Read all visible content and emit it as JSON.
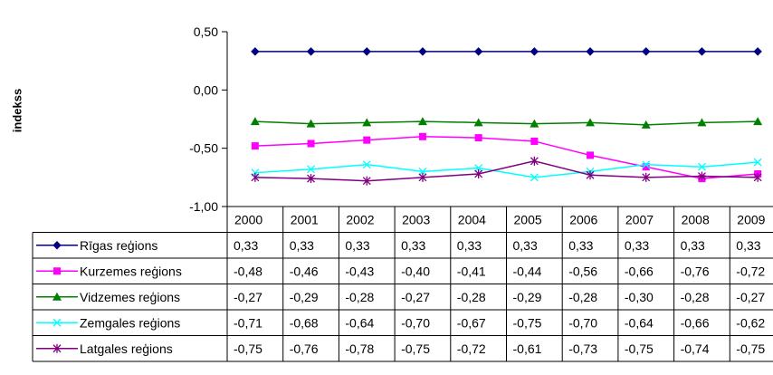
{
  "chart_data": {
    "type": "line",
    "title": "",
    "xlabel": "",
    "ylabel": "indekss",
    "ylim": [
      -1.0,
      0.5
    ],
    "yticks": [
      "0,50",
      "0,00",
      "-0,50",
      "-1,00"
    ],
    "categories": [
      "2000",
      "2001",
      "2002",
      "2003",
      "2004",
      "2005",
      "2006",
      "2007",
      "2008",
      "2009"
    ],
    "grid": false,
    "legend": "data-table",
    "series": [
      {
        "name": "Rīgas reģions",
        "color": "#000080",
        "marker": "diamond",
        "values": [
          0.33,
          0.33,
          0.33,
          0.33,
          0.33,
          0.33,
          0.33,
          0.33,
          0.33,
          0.33
        ],
        "labels": [
          "0,33",
          "0,33",
          "0,33",
          "0,33",
          "0,33",
          "0,33",
          "0,33",
          "0,33",
          "0,33",
          "0,33"
        ]
      },
      {
        "name": "Kurzemes reģions",
        "color": "#ff00ff",
        "marker": "square",
        "values": [
          -0.48,
          -0.46,
          -0.43,
          -0.4,
          -0.41,
          -0.44,
          -0.56,
          -0.66,
          -0.76,
          -0.72
        ],
        "labels": [
          "-0,48",
          "-0,46",
          "-0,43",
          "-0,40",
          "-0,41",
          "-0,44",
          "-0,56",
          "-0,66",
          "-0,76",
          "-0,72"
        ]
      },
      {
        "name": "Vidzemes reģions",
        "color": "#008000",
        "marker": "triangle",
        "values": [
          -0.27,
          -0.29,
          -0.28,
          -0.27,
          -0.28,
          -0.29,
          -0.28,
          -0.3,
          -0.28,
          -0.27
        ],
        "labels": [
          "-0,27",
          "-0,29",
          "-0,28",
          "-0,27",
          "-0,28",
          "-0,29",
          "-0,28",
          "-0,30",
          "-0,28",
          "-0,27"
        ]
      },
      {
        "name": "Zemgales reģions",
        "color": "#00ffff",
        "marker": "x",
        "values": [
          -0.71,
          -0.68,
          -0.64,
          -0.7,
          -0.67,
          -0.75,
          -0.7,
          -0.64,
          -0.66,
          -0.62
        ],
        "labels": [
          "-0,71",
          "-0,68",
          "-0,64",
          "-0,70",
          "-0,67",
          "-0,75",
          "-0,70",
          "-0,64",
          "-0,66",
          "-0,62"
        ]
      },
      {
        "name": "Latgales reģions",
        "color": "#800080",
        "marker": "star",
        "values": [
          -0.75,
          -0.76,
          -0.78,
          -0.75,
          -0.72,
          -0.61,
          -0.73,
          -0.75,
          -0.74,
          -0.75
        ],
        "labels": [
          "-0,75",
          "-0,76",
          "-0,78",
          "-0,75",
          "-0,72",
          "-0,61",
          "-0,73",
          "-0,75",
          "-0,74",
          "-0,75"
        ]
      }
    ]
  }
}
